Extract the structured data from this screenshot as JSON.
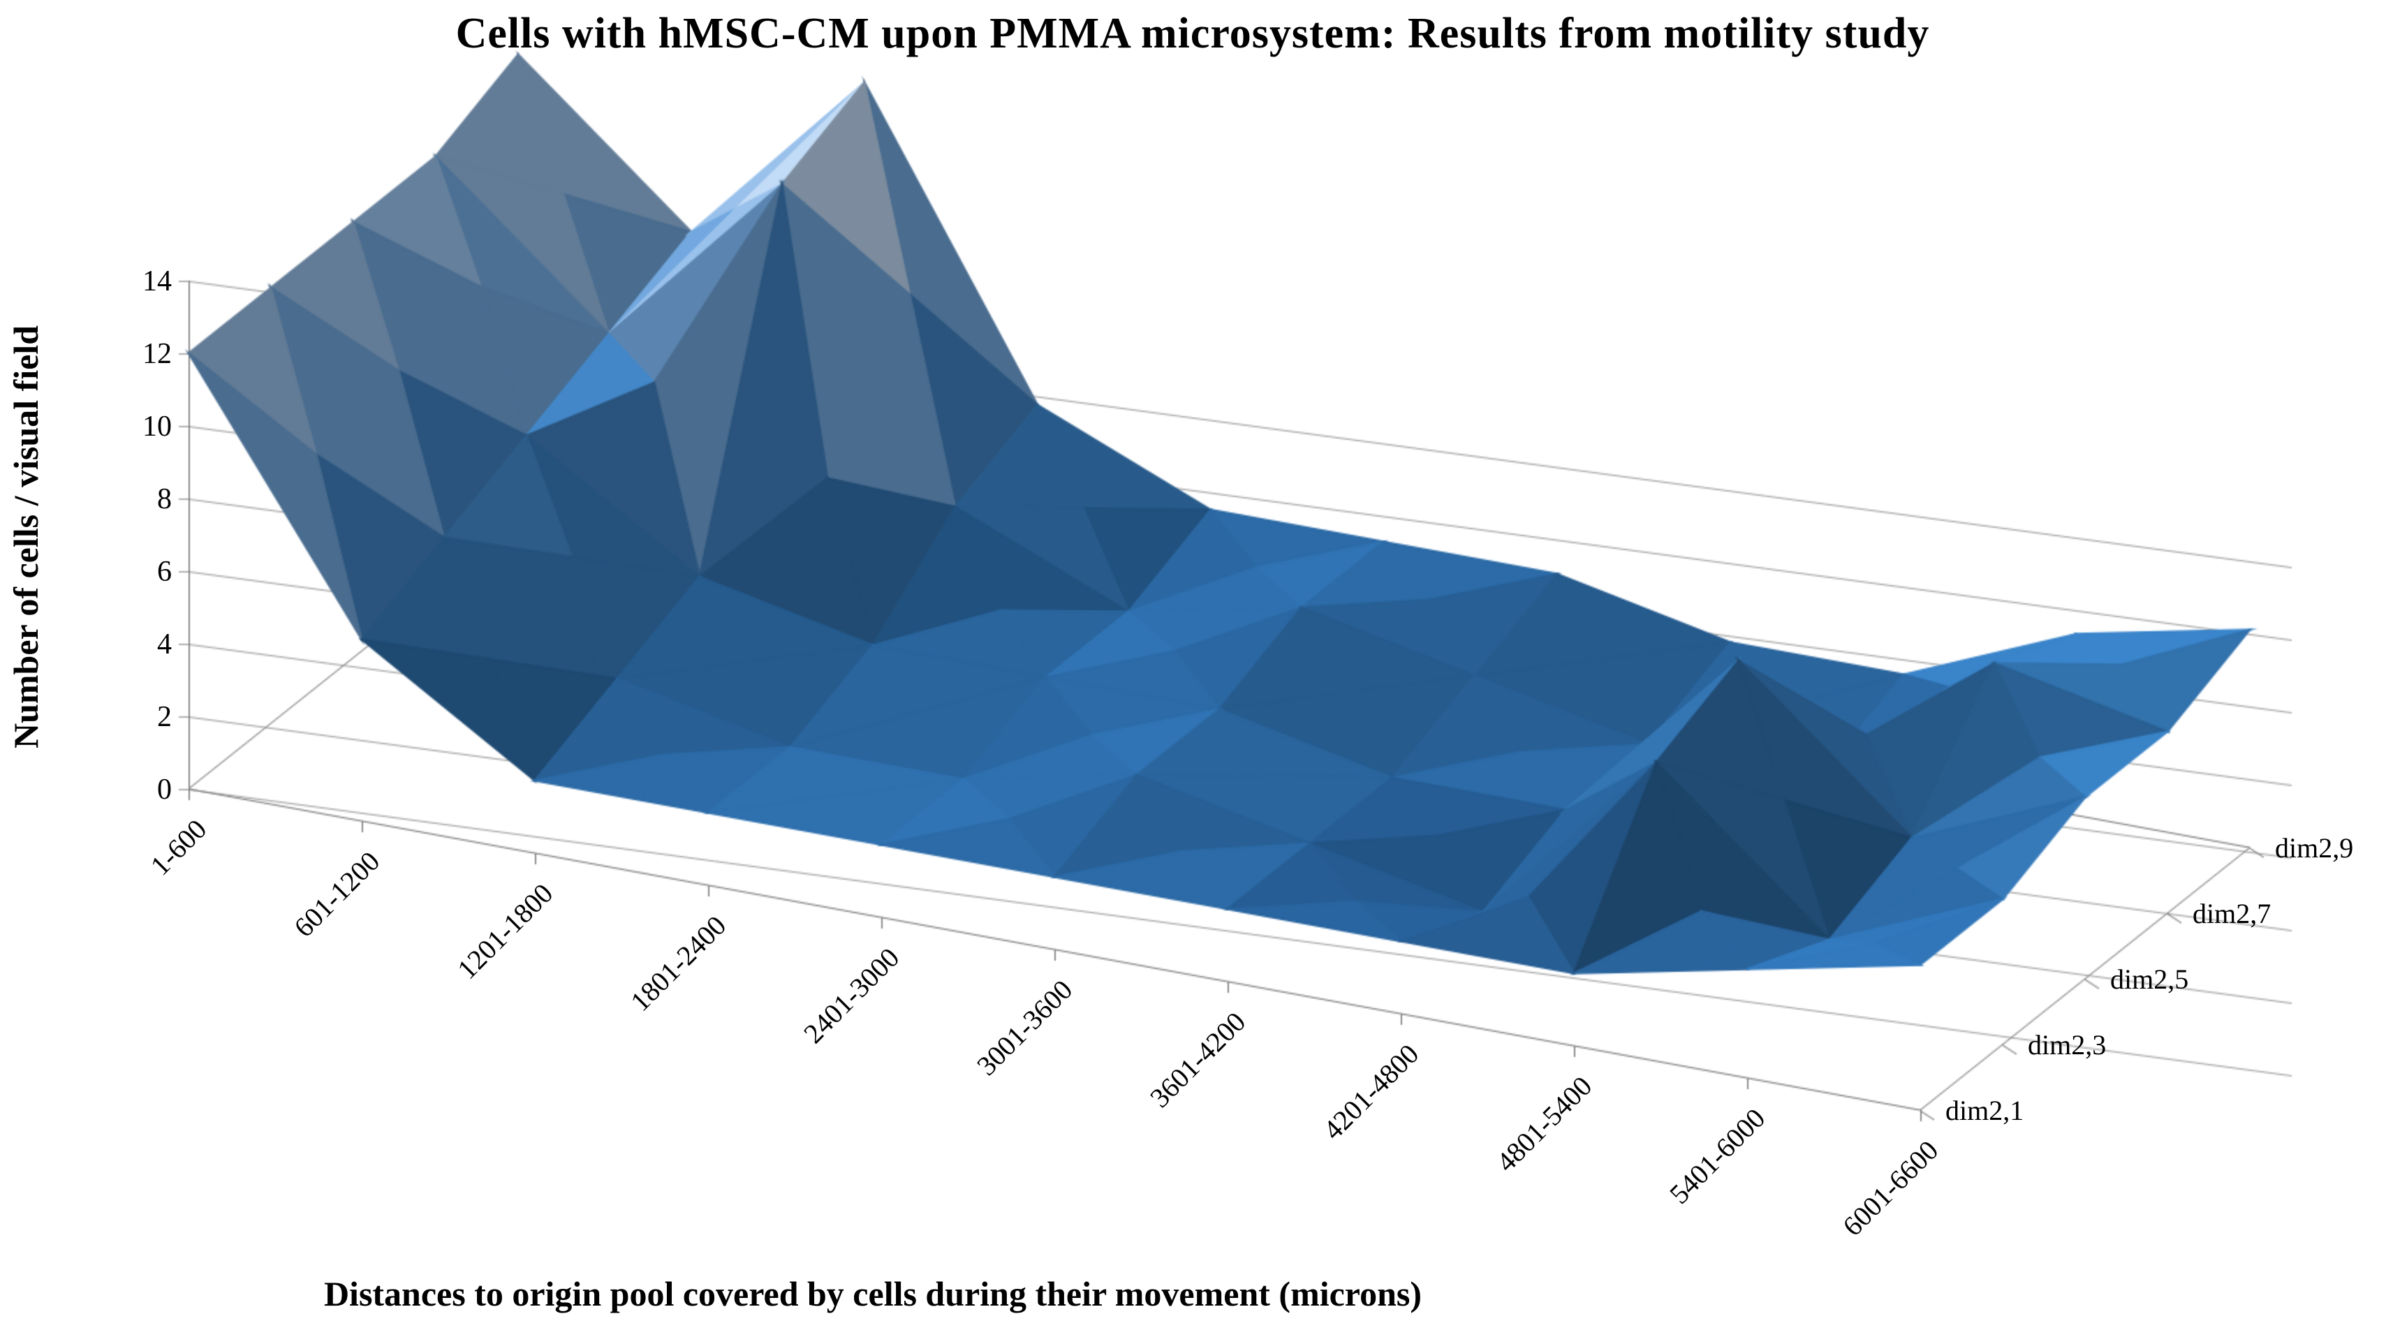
{
  "chart_data": {
    "type": "surface",
    "view": "3d",
    "title": "Cells with hMSC-CM upon PMMA microsystem: Results from motility study",
    "xlabel": "Distances to origin pool covered by cells during their movement (microns)",
    "ylabel": "Number of cells / visual field",
    "categories": [
      "1-600",
      "601-1200",
      "1201-1800",
      "1801-2400",
      "2401-3000",
      "3001-3600",
      "3601-4200",
      "4201-4800",
      "4801-5400",
      "5401-6000",
      "6001-6600"
    ],
    "series": [
      {
        "name": "dim2,1",
        "values": [
          12,
          5,
          2,
          2,
          2,
          2,
          2,
          2,
          2,
          3,
          4
        ]
      },
      {
        "name": "dim2,3",
        "values": [
          12,
          6,
          3,
          2,
          2,
          3,
          2,
          1,
          6,
          2,
          4
        ]
      },
      {
        "name": "dim2,5",
        "values": [
          12,
          7,
          4,
          3,
          3,
          3,
          2,
          2,
          7,
          3,
          5
        ]
      },
      {
        "name": "dim2,7",
        "values": [
          12,
          8,
          13,
          5,
          3,
          4,
          3,
          2,
          2,
          6,
          5
        ]
      },
      {
        "name": "dim2,9",
        "values": [
          13,
          9,
          14,
          6,
          4,
          4,
          4,
          3,
          3,
          5,
          6
        ]
      }
    ],
    "ylim": [
      0,
      14
    ],
    "ytick_step": 2,
    "grid": true,
    "legend_position": "none",
    "band_colors": [
      "#24588c",
      "#2a659e",
      "#3272ae",
      "#3f80bd",
      "#6fa3d8",
      "#94bbe4",
      "#bcd4ef",
      "#dde9f7"
    ],
    "gridline_color": "#a6a6a6",
    "axis_line_color": "#808080",
    "background": "#ffffff"
  }
}
